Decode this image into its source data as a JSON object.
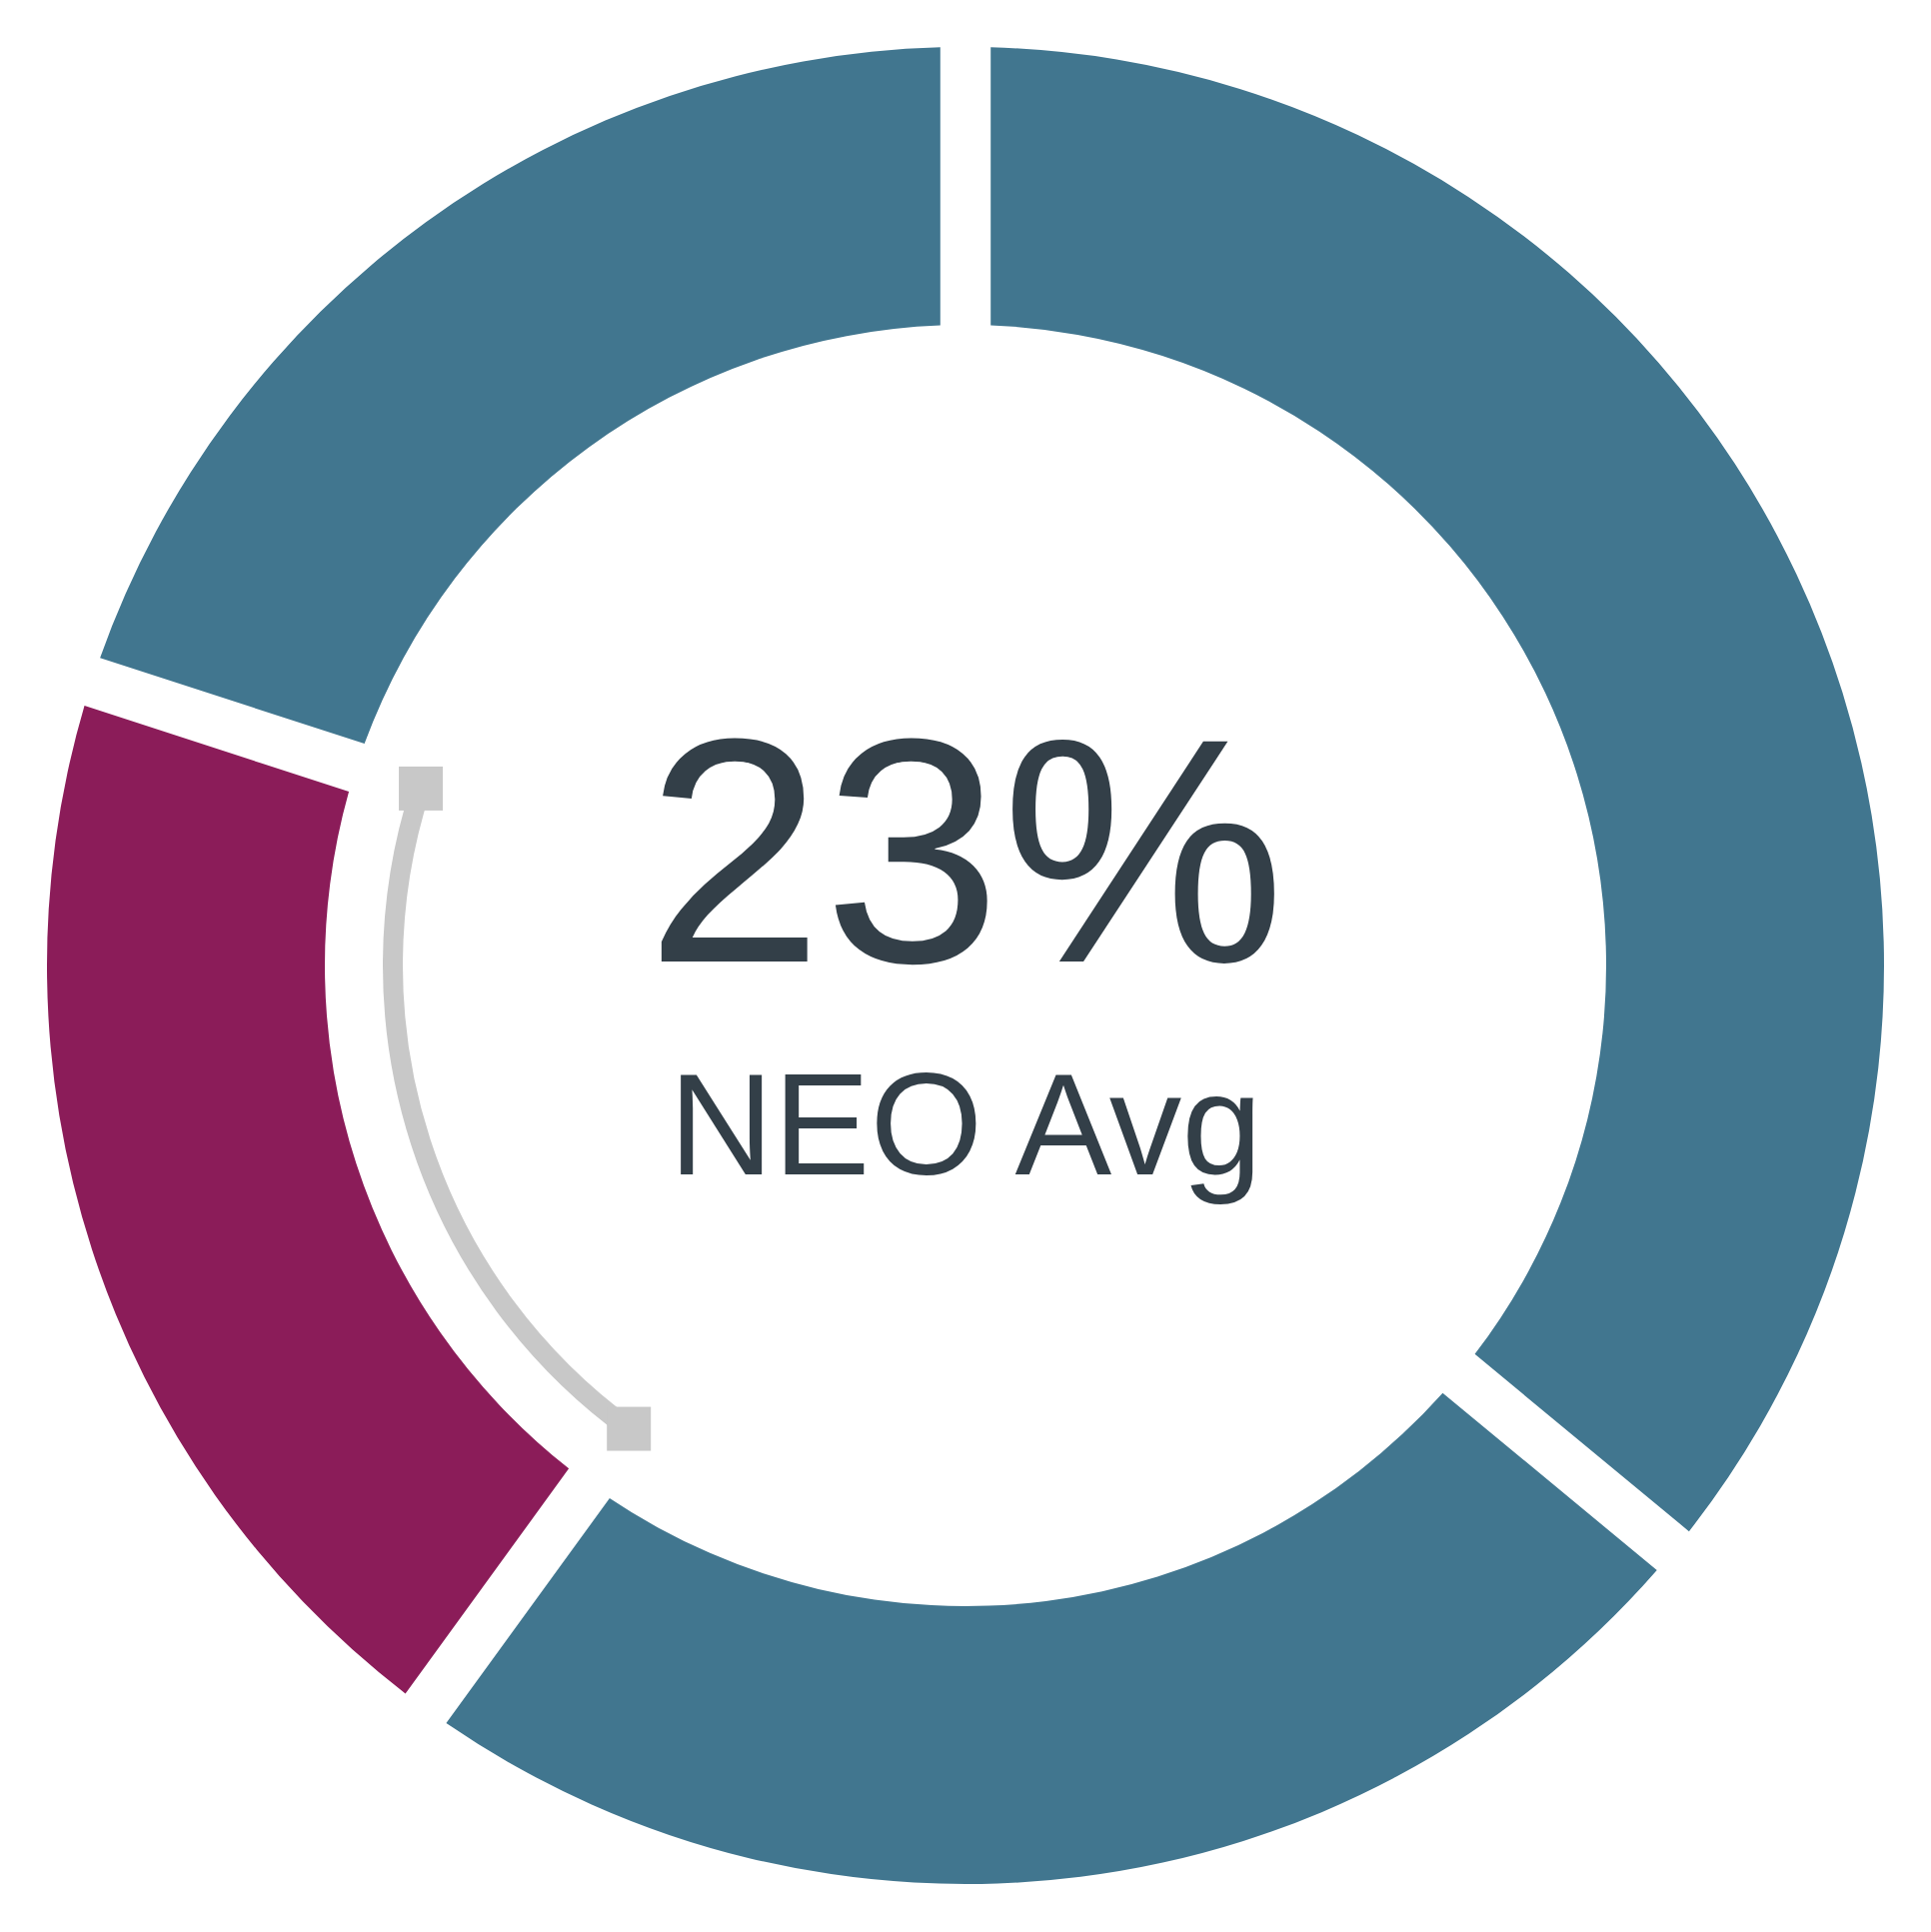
{
  "chart_data": {
    "type": "donut",
    "categories": [
      null,
      null,
      null,
      null
    ],
    "values": [
      36,
      24,
      20,
      20
    ],
    "colors": [
      "#41768f",
      "#41768f",
      "#8b1c59",
      "#41768f"
    ],
    "annotations": [
      "23%",
      "NEO Avg"
    ]
  }
}
